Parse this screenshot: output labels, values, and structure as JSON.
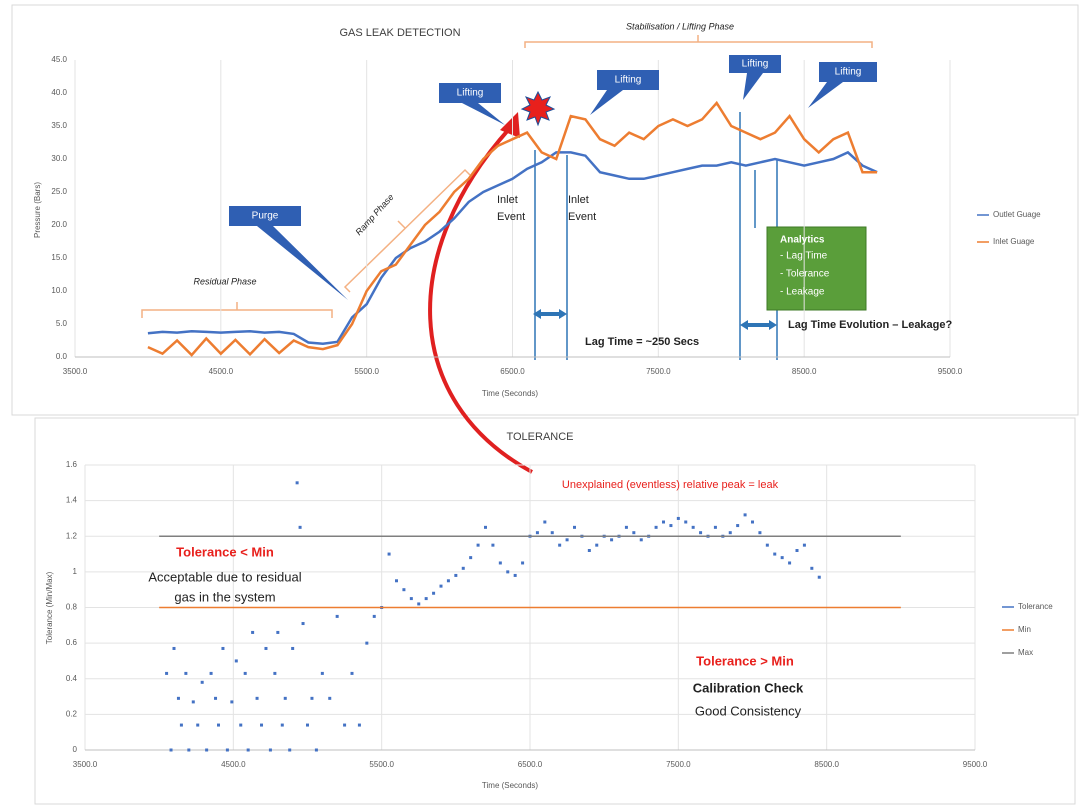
{
  "chart_data": [
    {
      "type": "line",
      "title": "GAS LEAK DETECTION",
      "x_label": "Time (Seconds)",
      "y_label": "Pressure (Bars)",
      "xlim": [
        3500,
        9500
      ],
      "xticks": [
        {
          "value": 3500,
          "label": "3500.0"
        },
        {
          "value": 4500,
          "label": "4500.0"
        },
        {
          "value": 5500,
          "label": "5500.0"
        },
        {
          "value": 6500,
          "label": "6500.0"
        },
        {
          "value": 7500,
          "label": "7500.0"
        },
        {
          "value": 8500,
          "label": "8500.0"
        },
        {
          "value": 9500,
          "label": "9500.0"
        }
      ],
      "ylim": [
        0,
        45
      ],
      "yticks": [
        {
          "value": 0,
          "label": "0.0"
        },
        {
          "value": 5,
          "label": "5.0"
        },
        {
          "value": 10,
          "label": "10.0"
        },
        {
          "value": 15,
          "label": "15.0"
        },
        {
          "value": 20,
          "label": "20.0"
        },
        {
          "value": 25,
          "label": "25.0"
        },
        {
          "value": 30,
          "label": "30.0"
        },
        {
          "value": 35,
          "label": "35.0"
        },
        {
          "value": 40,
          "label": "40.0"
        },
        {
          "value": 45,
          "label": "45.0"
        }
      ],
      "grid": "x",
      "x": [
        4000,
        4100,
        4200,
        4300,
        4400,
        4500,
        4600,
        4700,
        4800,
        4900,
        5000,
        5100,
        5200,
        5300,
        5400,
        5500,
        5600,
        5700,
        5800,
        5900,
        6000,
        6100,
        6200,
        6300,
        6400,
        6500,
        6600,
        6700,
        6800,
        6900,
        7000,
        7100,
        7200,
        7300,
        7400,
        7500,
        7600,
        7700,
        7800,
        7900,
        8000,
        8100,
        8200,
        8300,
        8400,
        8500,
        8600,
        8700,
        8800,
        8900,
        9000
      ],
      "series": [
        {
          "name": "Outlet Guage",
          "color": "#4472c4",
          "values": [
            3.6,
            3.8,
            3.7,
            3.9,
            3.8,
            3.7,
            3.8,
            3.9,
            3.7,
            3.8,
            3.5,
            2.2,
            2.0,
            2.3,
            6.0,
            8.0,
            12.0,
            15.0,
            16.5,
            17.5,
            19.0,
            21.0,
            23.5,
            25.0,
            26.0,
            27.0,
            28.5,
            29.5,
            31.0,
            31.0,
            30.5,
            28.0,
            27.5,
            27.0,
            27.0,
            27.5,
            28.0,
            28.5,
            29.0,
            29.0,
            29.5,
            29.0,
            29.5,
            30.0,
            29.5,
            29.0,
            29.5,
            30.0,
            31.0,
            29.0,
            28.0
          ]
        },
        {
          "name": "Inlet Guage",
          "color": "#ed7d31",
          "values": [
            1.5,
            0.5,
            2.5,
            0.3,
            2.8,
            0.5,
            2.6,
            0.4,
            2.7,
            0.6,
            2.5,
            1.5,
            1.2,
            1.8,
            5.0,
            10.0,
            13.0,
            14.0,
            17.0,
            20.0,
            22.0,
            25.0,
            27.0,
            30.0,
            32.0,
            33.0,
            34.0,
            31.0,
            30.0,
            36.5,
            36.0,
            33.0,
            32.0,
            34.0,
            33.0,
            35.0,
            36.0,
            35.0,
            36.0,
            38.5,
            35.0,
            34.0,
            33.0,
            34.0,
            36.5,
            33.0,
            31.0,
            33.0,
            34.0,
            28.0,
            28.0
          ]
        }
      ],
      "legend": "right",
      "annotations": [
        "Purge",
        "Ramp Phase",
        "Residual Phase",
        "Lifting",
        "Lifting",
        "Lifting",
        "Lifting",
        "Inlet",
        "Event",
        "Inlet",
        "Event",
        "Stabilisation / Lifting Phase",
        "Analytics",
        "- Lag Time",
        "- Tolerance",
        "- Leakage",
        "Lag Time = ~250 Secs",
        "Lag Time Evolution – Leakage?"
      ]
    },
    {
      "type": "scatter",
      "title": "TOLERANCE",
      "x_label": "Time (Seconds)",
      "y_label": "Tolerance (Min/Max)",
      "xlim": [
        3500,
        9500
      ],
      "xticks": [
        {
          "value": 3500,
          "label": "3500.0"
        },
        {
          "value": 4500,
          "label": "4500.0"
        },
        {
          "value": 5500,
          "label": "5500.0"
        },
        {
          "value": 6500,
          "label": "6500.0"
        },
        {
          "value": 7500,
          "label": "7500.0"
        },
        {
          "value": 8500,
          "label": "8500.0"
        },
        {
          "value": 9500,
          "label": "9500.0"
        }
      ],
      "ylim": [
        0,
        1.6
      ],
      "yticks": [
        0,
        0.2,
        0.4,
        0.6,
        0.8,
        1,
        1.2,
        1.4,
        1.6
      ],
      "grid": "both",
      "series": [
        {
          "name": "Tolerance",
          "color": "#4472c4",
          "x": [
            4050,
            4080,
            4100,
            4130,
            4150,
            4180,
            4200,
            4230,
            4260,
            4290,
            4320,
            4350,
            4380,
            4400,
            4430,
            4460,
            4490,
            4520,
            4550,
            4580,
            4600,
            4630,
            4660,
            4690,
            4720,
            4750,
            4780,
            4800,
            4830,
            4850,
            4880,
            4900,
            4930,
            4950,
            4970,
            5000,
            5030,
            5060,
            5100,
            5150,
            5200,
            5250,
            5300,
            5350,
            5400,
            5450,
            5500,
            5550,
            5600,
            5650,
            5700,
            5750,
            5800,
            5850,
            5900,
            5950,
            6000,
            6050,
            6100,
            6150,
            6200,
            6250,
            6300,
            6350,
            6400,
            6450,
            6500,
            6550,
            6600,
            6650,
            6700,
            6750,
            6800,
            6850,
            6900,
            6950,
            7000,
            7050,
            7100,
            7150,
            7200,
            7250,
            7300,
            7350,
            7400,
            7450,
            7500,
            7550,
            7600,
            7650,
            7700,
            7750,
            7800,
            7850,
            7900,
            7950,
            8000,
            8050,
            8100,
            8150,
            8200,
            8250,
            8300,
            8350,
            8400,
            8450
          ],
          "values": [
            0.43,
            0,
            0.57,
            0.29,
            0.14,
            0.43,
            0,
            0.27,
            0.14,
            0.38,
            0,
            0.43,
            0.29,
            0.14,
            0.57,
            0,
            0.27,
            0.5,
            0.14,
            0.43,
            0,
            0.66,
            0.29,
            0.14,
            0.57,
            0,
            0.43,
            0.66,
            0.14,
            0.29,
            0,
            0.57,
            1.5,
            1.25,
            0.71,
            0.14,
            0.29,
            0,
            0.43,
            0.29,
            0.75,
            0.14,
            0.43,
            0.14,
            0.6,
            0.75,
            0.8,
            1.1,
            0.95,
            0.9,
            0.85,
            0.82,
            0.85,
            0.88,
            0.92,
            0.95,
            0.98,
            1.02,
            1.08,
            1.15,
            1.25,
            1.15,
            1.05,
            1.0,
            0.98,
            1.05,
            1.2,
            1.22,
            1.28,
            1.22,
            1.15,
            1.18,
            1.25,
            1.2,
            1.12,
            1.15,
            1.2,
            1.18,
            1.2,
            1.25,
            1.22,
            1.18,
            1.2,
            1.25,
            1.28,
            1.26,
            1.3,
            1.28,
            1.25,
            1.22,
            1.2,
            1.25,
            1.2,
            1.22,
            1.26,
            1.32,
            1.28,
            1.22,
            1.15,
            1.1,
            1.08,
            1.05,
            1.12,
            1.15,
            1.02,
            0.97
          ]
        },
        {
          "name": "Min",
          "color": "#ed7d31",
          "mode": "line",
          "x": [
            4000,
            9000
          ],
          "values": [
            0.8,
            0.8
          ]
        },
        {
          "name": "Max",
          "color": "#7f7f7f",
          "mode": "line",
          "x": [
            4000,
            9000
          ],
          "values": [
            1.2,
            1.2
          ]
        }
      ],
      "legend": "right",
      "annotations": [
        "Unexplained (eventless) relative peak = leak",
        "Tolerance < Min",
        "Acceptable due to residual",
        "gas in the system",
        "Tolerance > Min",
        "Calibration Check",
        "Good Consistency"
      ]
    }
  ]
}
